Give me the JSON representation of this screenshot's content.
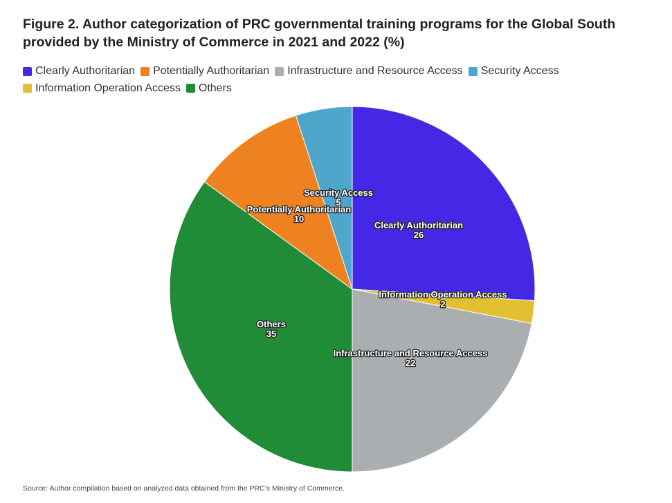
{
  "title": "Figure 2. Author categorization of PRC governmental training programs for the Global South provided by the Ministry of Commerce in 2021 and 2022 (%)",
  "source": "Source: Author compilation based on analyzed data obtained from the PRC’s Ministry of Commerce.",
  "chart_data": {
    "type": "pie",
    "title": "Figure 2. Author categorization of PRC governmental training programs for the Global South provided by the Ministry of Commerce in 2021 and 2022 (%)",
    "legend_position": "top-left",
    "start": "top, clockwise",
    "slices": [
      {
        "label": "Clearly Authoritarian",
        "value": 26,
        "color": "#4527e6"
      },
      {
        "label": "Information Operation Access",
        "value": 2,
        "color": "#e3c030"
      },
      {
        "label": "Infrastructure and Resource Access",
        "value": 22,
        "color": "#abaeb1"
      },
      {
        "label": "Others",
        "value": 35,
        "color": "#218c37"
      },
      {
        "label": "Potentially Authoritarian",
        "value": 10,
        "color": "#ee8120"
      },
      {
        "label": "Security Access",
        "value": 5,
        "color": "#4fa6cb"
      }
    ]
  },
  "legend_order": [
    0,
    4,
    2,
    5,
    1,
    3
  ]
}
